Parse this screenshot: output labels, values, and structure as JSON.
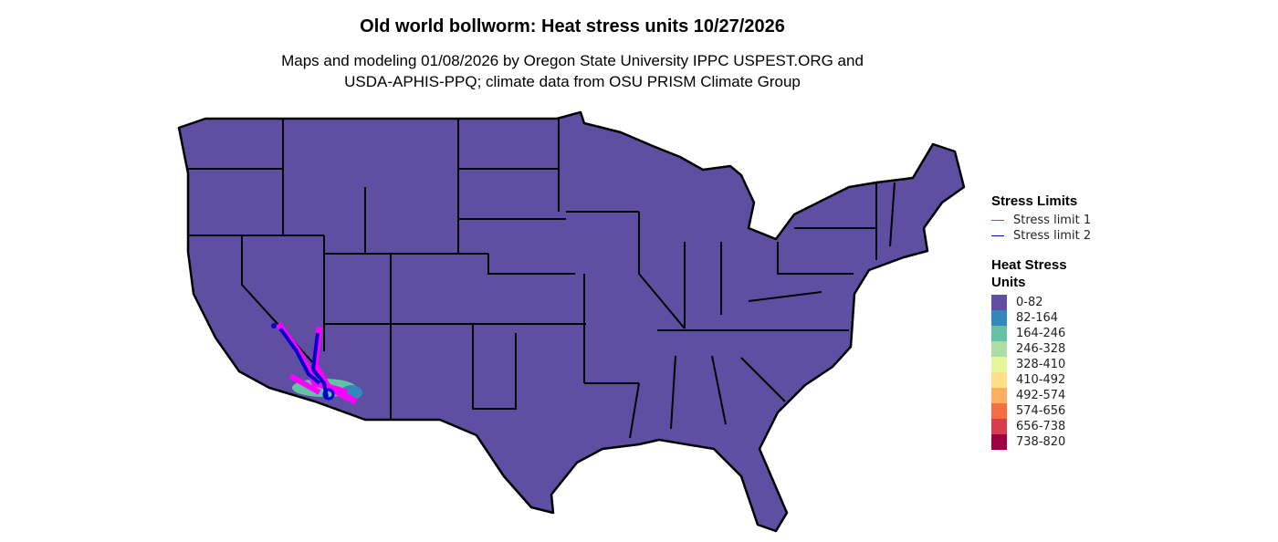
{
  "title": "Old world bollworm: Heat stress units 10/27/2026",
  "subtitle_line1": "Maps and modeling 01/08/2026 by Oregon State University IPPC USPEST.ORG and",
  "subtitle_line2": "USDA-APHIS-PPQ; climate data from OSU PRISM Climate Group",
  "map": {
    "base_fill": "#5E4FA2",
    "border_color": "#000000"
  },
  "legend": {
    "stress_title": "Stress Limits",
    "stress_items": [
      {
        "label": "Stress limit 1",
        "color": "#FF00FF"
      },
      {
        "label": "Stress limit 2",
        "color": "#0000CD"
      }
    ],
    "heat_title_1": "Heat Stress",
    "heat_title_2": "Units",
    "heat_items": [
      {
        "label": "0-82",
        "color": "#5E4FA2"
      },
      {
        "label": "82-164",
        "color": "#3288BD"
      },
      {
        "label": "164-246",
        "color": "#66C2A5"
      },
      {
        "label": "246-328",
        "color": "#ABDDA4"
      },
      {
        "label": "328-410",
        "color": "#E6F598"
      },
      {
        "label": "410-492",
        "color": "#FEE08B"
      },
      {
        "label": "492-574",
        "color": "#FDAE61"
      },
      {
        "label": "574-656",
        "color": "#F46D43"
      },
      {
        "label": "656-738",
        "color": "#D53E4F"
      },
      {
        "label": "738-820",
        "color": "#9E0142"
      }
    ]
  }
}
